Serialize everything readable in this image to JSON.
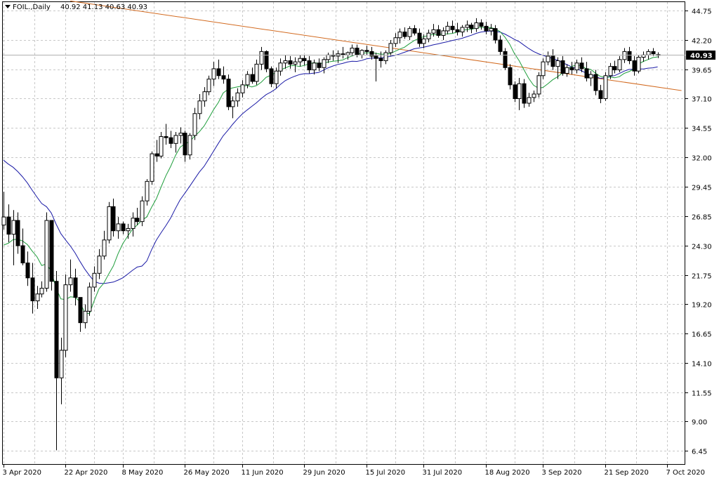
{
  "header": {
    "symbol": "FOIL.,Daily",
    "ohlc": "40.92 41.13 40.63 40.93",
    "last_price_badge": "40.93"
  },
  "chart_data": {
    "type": "candlestick",
    "title": "FOIL.,Daily 40.92 41.13 40.63 40.93",
    "ylim": [
      5.3,
      45.5
    ],
    "y_ticks": [
      "44.75",
      "42.20",
      "39.65",
      "37.10",
      "34.55",
      "32.00",
      "29.45",
      "26.85",
      "24.30",
      "21.75",
      "19.20",
      "16.65",
      "14.10",
      "11.55",
      "9.00",
      "6.45"
    ],
    "x_ticks": [
      {
        "index": 0,
        "label": "3 Apr 2020"
      },
      {
        "index": 13,
        "label": "22 Apr 2020"
      },
      {
        "index": 25,
        "label": "8 May 2020"
      },
      {
        "index": 38,
        "label": "26 May 2020"
      },
      {
        "index": 50,
        "label": "11 Jun 2020"
      },
      {
        "index": 63,
        "label": "29 Jun 2020"
      },
      {
        "index": 76,
        "label": "15 Jul 2020"
      },
      {
        "index": 88,
        "label": "31 Jul 2020"
      },
      {
        "index": 101,
        "label": "18 Aug 2020"
      },
      {
        "index": 113,
        "label": "3 Sep 2020"
      },
      {
        "index": 126,
        "label": "21 Sep 2020"
      },
      {
        "index": 139,
        "label": "7 Oct 2020"
      }
    ],
    "last_price": 40.93,
    "grid": true,
    "colors": {
      "candle": "#000000",
      "ma_fast": "#1f9e3c",
      "ma_slow": "#1a1aa6",
      "trendline": "#d2691e",
      "last_price_line": "#b0b0b0"
    },
    "candles": [
      [
        26.1,
        29,
        25.7,
        26.8
      ],
      [
        26.8,
        27.9,
        24.6,
        25.3
      ],
      [
        25.3,
        27.4,
        22.6,
        26.5
      ],
      [
        26.5,
        27.2,
        23.6,
        24.3
      ],
      [
        24.3,
        25.8,
        22.6,
        22.8
      ],
      [
        22.8,
        23.8,
        20.8,
        21.5
      ],
      [
        21.5,
        22.8,
        18.4,
        19.5
      ],
      [
        19.5,
        20.8,
        18.8,
        20.1
      ],
      [
        20.1,
        21.2,
        19.8,
        20.6
      ],
      [
        20.6,
        27.2,
        20.3,
        26.5
      ],
      [
        26.5,
        26.5,
        20.4,
        21.2
      ],
      [
        21.2,
        22.1,
        6.5,
        12.8
      ],
      [
        12.8,
        16.3,
        10.5,
        15.2
      ],
      [
        15.2,
        21.8,
        14.6,
        20.9
      ],
      [
        20.9,
        23.1,
        20.3,
        21.5
      ],
      [
        21.5,
        22.3,
        19.1,
        19.8
      ],
      [
        19.8,
        19.8,
        16.8,
        17.6
      ],
      [
        17.6,
        19.2,
        17.1,
        18.6
      ],
      [
        18.6,
        21.1,
        18.2,
        20.7
      ],
      [
        20.7,
        22.5,
        20.3,
        21.9
      ],
      [
        21.9,
        24,
        21.4,
        23.4
      ],
      [
        23.4,
        25.6,
        23.1,
        24.8
      ],
      [
        24.8,
        28.1,
        24.5,
        27.7
      ],
      [
        27.7,
        28.4,
        25.1,
        25.6
      ],
      [
        25.6,
        26.8,
        24.9,
        26.2
      ],
      [
        26.2,
        26.4,
        25.3,
        25.6
      ],
      [
        25.6,
        26.2,
        24.9,
        25.8
      ],
      [
        25.8,
        27.2,
        25.1,
        26.7
      ],
      [
        26.7,
        27.6,
        26.1,
        26.4
      ],
      [
        26.4,
        28.6,
        26,
        28.2
      ],
      [
        28.2,
        30.1,
        27.8,
        29.9
      ],
      [
        29.9,
        32.5,
        29.6,
        32.3
      ],
      [
        32.3,
        33.5,
        31.6,
        32.1
      ],
      [
        32.1,
        34.2,
        31.9,
        33.8
      ],
      [
        33.8,
        34.9,
        33.1,
        33.7
      ],
      [
        33.7,
        34.3,
        32.8,
        33.2
      ],
      [
        33.2,
        34.2,
        32.4,
        33.9
      ],
      [
        33.9,
        34.6,
        33.2,
        34.1
      ],
      [
        34.1,
        34.3,
        31.6,
        32.2
      ],
      [
        32.2,
        34.1,
        31.8,
        33.9
      ],
      [
        33.9,
        36.3,
        33.5,
        35.8
      ],
      [
        35.8,
        37.5,
        35.3,
        36.9
      ],
      [
        36.9,
        38.1,
        36.4,
        37.7
      ],
      [
        37.7,
        39.1,
        37.4,
        38.8
      ],
      [
        38.8,
        40.3,
        38.2,
        39.7
      ],
      [
        39.7,
        40.5,
        38.8,
        39.1
      ],
      [
        39.1,
        39.9,
        38.4,
        38.8
      ],
      [
        38.8,
        39.2,
        36.1,
        36.4
      ],
      [
        36.4,
        37.3,
        35.4,
        36.9
      ],
      [
        36.9,
        38,
        36.4,
        37.6
      ],
      [
        37.6,
        38.7,
        37.2,
        38.3
      ],
      [
        38.3,
        39.5,
        38,
        39.2
      ],
      [
        39.2,
        39.8,
        38.4,
        38.6
      ],
      [
        38.6,
        40.5,
        38.3,
        40.1
      ],
      [
        40.1,
        41.6,
        39.6,
        41.2
      ],
      [
        41.2,
        41.3,
        39.4,
        39.7
      ],
      [
        39.7,
        39.9,
        38.1,
        38.4
      ],
      [
        38.4,
        39.8,
        38,
        39.5
      ],
      [
        39.5,
        40.6,
        39.1,
        40.2
      ],
      [
        40.2,
        40.9,
        39.7,
        40.4
      ],
      [
        40.4,
        40.8,
        39.7,
        40.1
      ],
      [
        40.1,
        40.7,
        39.4,
        40.3
      ],
      [
        40.3,
        40.9,
        39.9,
        40.6
      ],
      [
        40.6,
        40.9,
        40,
        40.4
      ],
      [
        40.4,
        40.8,
        39.3,
        39.6
      ],
      [
        39.6,
        40.5,
        39.2,
        40.2
      ],
      [
        40.2,
        40.6,
        39.5,
        39.8
      ],
      [
        39.8,
        40.7,
        39.3,
        40.5
      ],
      [
        40.5,
        41.1,
        40.2,
        40.9
      ],
      [
        40.9,
        41.3,
        40.4,
        40.8
      ],
      [
        40.8,
        41.3,
        40.2,
        41
      ],
      [
        41,
        41.6,
        40.6,
        40.9
      ],
      [
        40.9,
        41.2,
        40.5,
        41.1
      ],
      [
        41.1,
        41.8,
        40.8,
        41.5
      ],
      [
        41.5,
        41.8,
        40.7,
        40.9
      ],
      [
        40.9,
        41.4,
        40.6,
        41.3
      ],
      [
        41.3,
        41.7,
        40.9,
        41.2
      ],
      [
        41.2,
        41.6,
        40.5,
        40.8
      ],
      [
        40.8,
        41.1,
        38.6,
        40.6
      ],
      [
        40.6,
        41.2,
        39.8,
        40.4
      ],
      [
        40.4,
        41.3,
        40.1,
        41.1
      ],
      [
        41.1,
        42.2,
        40.8,
        41.9
      ],
      [
        41.9,
        42.8,
        41.6,
        42.4
      ],
      [
        42.4,
        43.2,
        41.9,
        42.9
      ],
      [
        42.9,
        43.3,
        42.3,
        42.5
      ],
      [
        42.5,
        43.4,
        42.2,
        43.2
      ],
      [
        43.2,
        43.5,
        42.6,
        42.8
      ],
      [
        42.8,
        43.2,
        41.6,
        41.9
      ],
      [
        41.9,
        42.7,
        41.5,
        42.3
      ],
      [
        42.3,
        43.1,
        42,
        42.8
      ],
      [
        42.8,
        43.6,
        42.5,
        43.1
      ],
      [
        43.1,
        43.5,
        42.4,
        42.6
      ],
      [
        42.6,
        43.3,
        42.2,
        43
      ],
      [
        43,
        43.8,
        42.7,
        43.4
      ],
      [
        43.4,
        43.9,
        42.8,
        43.1
      ],
      [
        43.1,
        43.7,
        42.6,
        42.9
      ],
      [
        42.9,
        43.5,
        42.5,
        43.3
      ],
      [
        43.3,
        43.9,
        42.9,
        43.5
      ],
      [
        43.5,
        43.7,
        42.8,
        43.2
      ],
      [
        43.2,
        44.1,
        42.9,
        43.7
      ],
      [
        43.7,
        44,
        43.1,
        43.4
      ],
      [
        43.4,
        43.8,
        42.7,
        43
      ],
      [
        43,
        43.6,
        42.6,
        43.2
      ],
      [
        43.2,
        43.5,
        41.9,
        42.2
      ],
      [
        42.2,
        42.6,
        40.9,
        41.2
      ],
      [
        41.2,
        41.5,
        39.6,
        39.8
      ],
      [
        39.8,
        40.1,
        37.9,
        38.3
      ],
      [
        38.3,
        38.6,
        36.8,
        37.1
      ],
      [
        37.1,
        38.9,
        36.1,
        38.4
      ],
      [
        38.4,
        38.8,
        36.3,
        36.7
      ],
      [
        36.7,
        37.6,
        36.4,
        37.2
      ],
      [
        37.2,
        37.8,
        36.8,
        37.5
      ],
      [
        37.5,
        39.4,
        37.2,
        39.1
      ],
      [
        39.1,
        40.6,
        38.8,
        40.3
      ],
      [
        40.3,
        41.2,
        40,
        40.8
      ],
      [
        40.8,
        41.4,
        39.6,
        39.9
      ],
      [
        39.9,
        40.7,
        38.8,
        40.4
      ],
      [
        40.4,
        40.8,
        39.1,
        39.3
      ],
      [
        39.3,
        40.1,
        39,
        39.8
      ],
      [
        39.8,
        40.3,
        39.2,
        39.6
      ],
      [
        39.6,
        40.5,
        39.3,
        40.2
      ],
      [
        40.2,
        40.7,
        39.4,
        39.7
      ],
      [
        39.7,
        40.3,
        38.6,
        38.9
      ],
      [
        38.9,
        39.5,
        38.2,
        39.2
      ],
      [
        39.2,
        39.6,
        37.4,
        37.8
      ],
      [
        37.8,
        38.3,
        36.7,
        37.1
      ],
      [
        37.1,
        39.4,
        36.9,
        39.1
      ],
      [
        39.1,
        40.2,
        38.8,
        39.9
      ],
      [
        39.9,
        40.4,
        39.3,
        39.6
      ],
      [
        39.6,
        40.8,
        39.4,
        40.5
      ],
      [
        40.5,
        41.5,
        40.2,
        41.2
      ],
      [
        41.2,
        41.6,
        40.1,
        40.4
      ],
      [
        40.4,
        40.8,
        39.1,
        39.5
      ],
      [
        39.5,
        40.9,
        39.3,
        40.7
      ],
      [
        40.7,
        41.2,
        40.3,
        40.9
      ],
      [
        40.9,
        41.4,
        40.5,
        41.2
      ],
      [
        41.2,
        41.5,
        40.8,
        41
      ],
      [
        40.92,
        41.13,
        40.63,
        40.93
      ]
    ],
    "trendline": {
      "start": [
        14,
        45.6
      ],
      "end": [
        142,
        37.8
      ]
    }
  }
}
